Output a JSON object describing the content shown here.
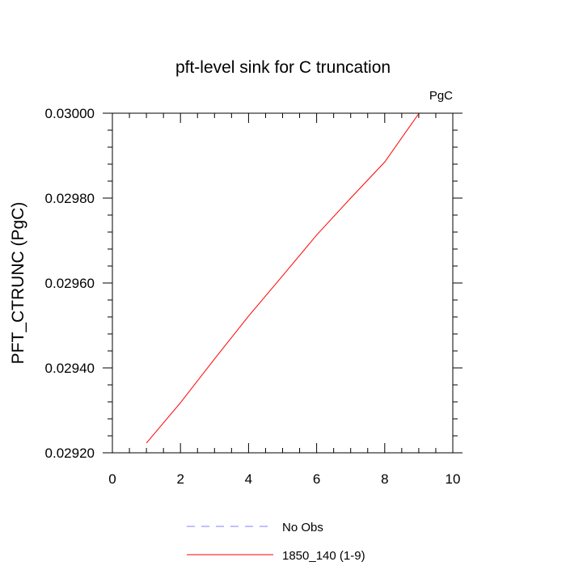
{
  "chart_data": {
    "type": "line",
    "title": "pft-level sink for C truncation",
    "units_label": "PgC",
    "ylabel": "PFT_CTRUNC  (PgC)",
    "xlabel": "",
    "xlim": [
      0,
      10
    ],
    "ylim": [
      0.0292,
      0.03
    ],
    "x_ticks": [
      0,
      2,
      4,
      6,
      8,
      10
    ],
    "x_tick_labels": [
      "0",
      "2",
      "4",
      "6",
      "8",
      "10"
    ],
    "y_ticks": [
      0.0292,
      0.0294,
      0.0296,
      0.0298,
      0.03
    ],
    "y_tick_labels": [
      "0.02920",
      "0.02940",
      "0.02960",
      "0.02980",
      "0.03000"
    ],
    "grid": false,
    "legend_position": "bottom",
    "series": [
      {
        "name": "No Obs",
        "color": "#8080ff",
        "dashed": true,
        "x": [],
        "y": []
      },
      {
        "name": "1850_140 (1-9)",
        "color": "#ff0000",
        "dashed": false,
        "x": [
          1,
          2,
          3,
          4,
          5,
          6,
          7,
          8,
          9
        ],
        "y": [
          0.029223,
          0.029318,
          0.029421,
          0.029522,
          0.029617,
          0.029713,
          0.0298,
          0.029885,
          0.029999
        ]
      }
    ]
  }
}
